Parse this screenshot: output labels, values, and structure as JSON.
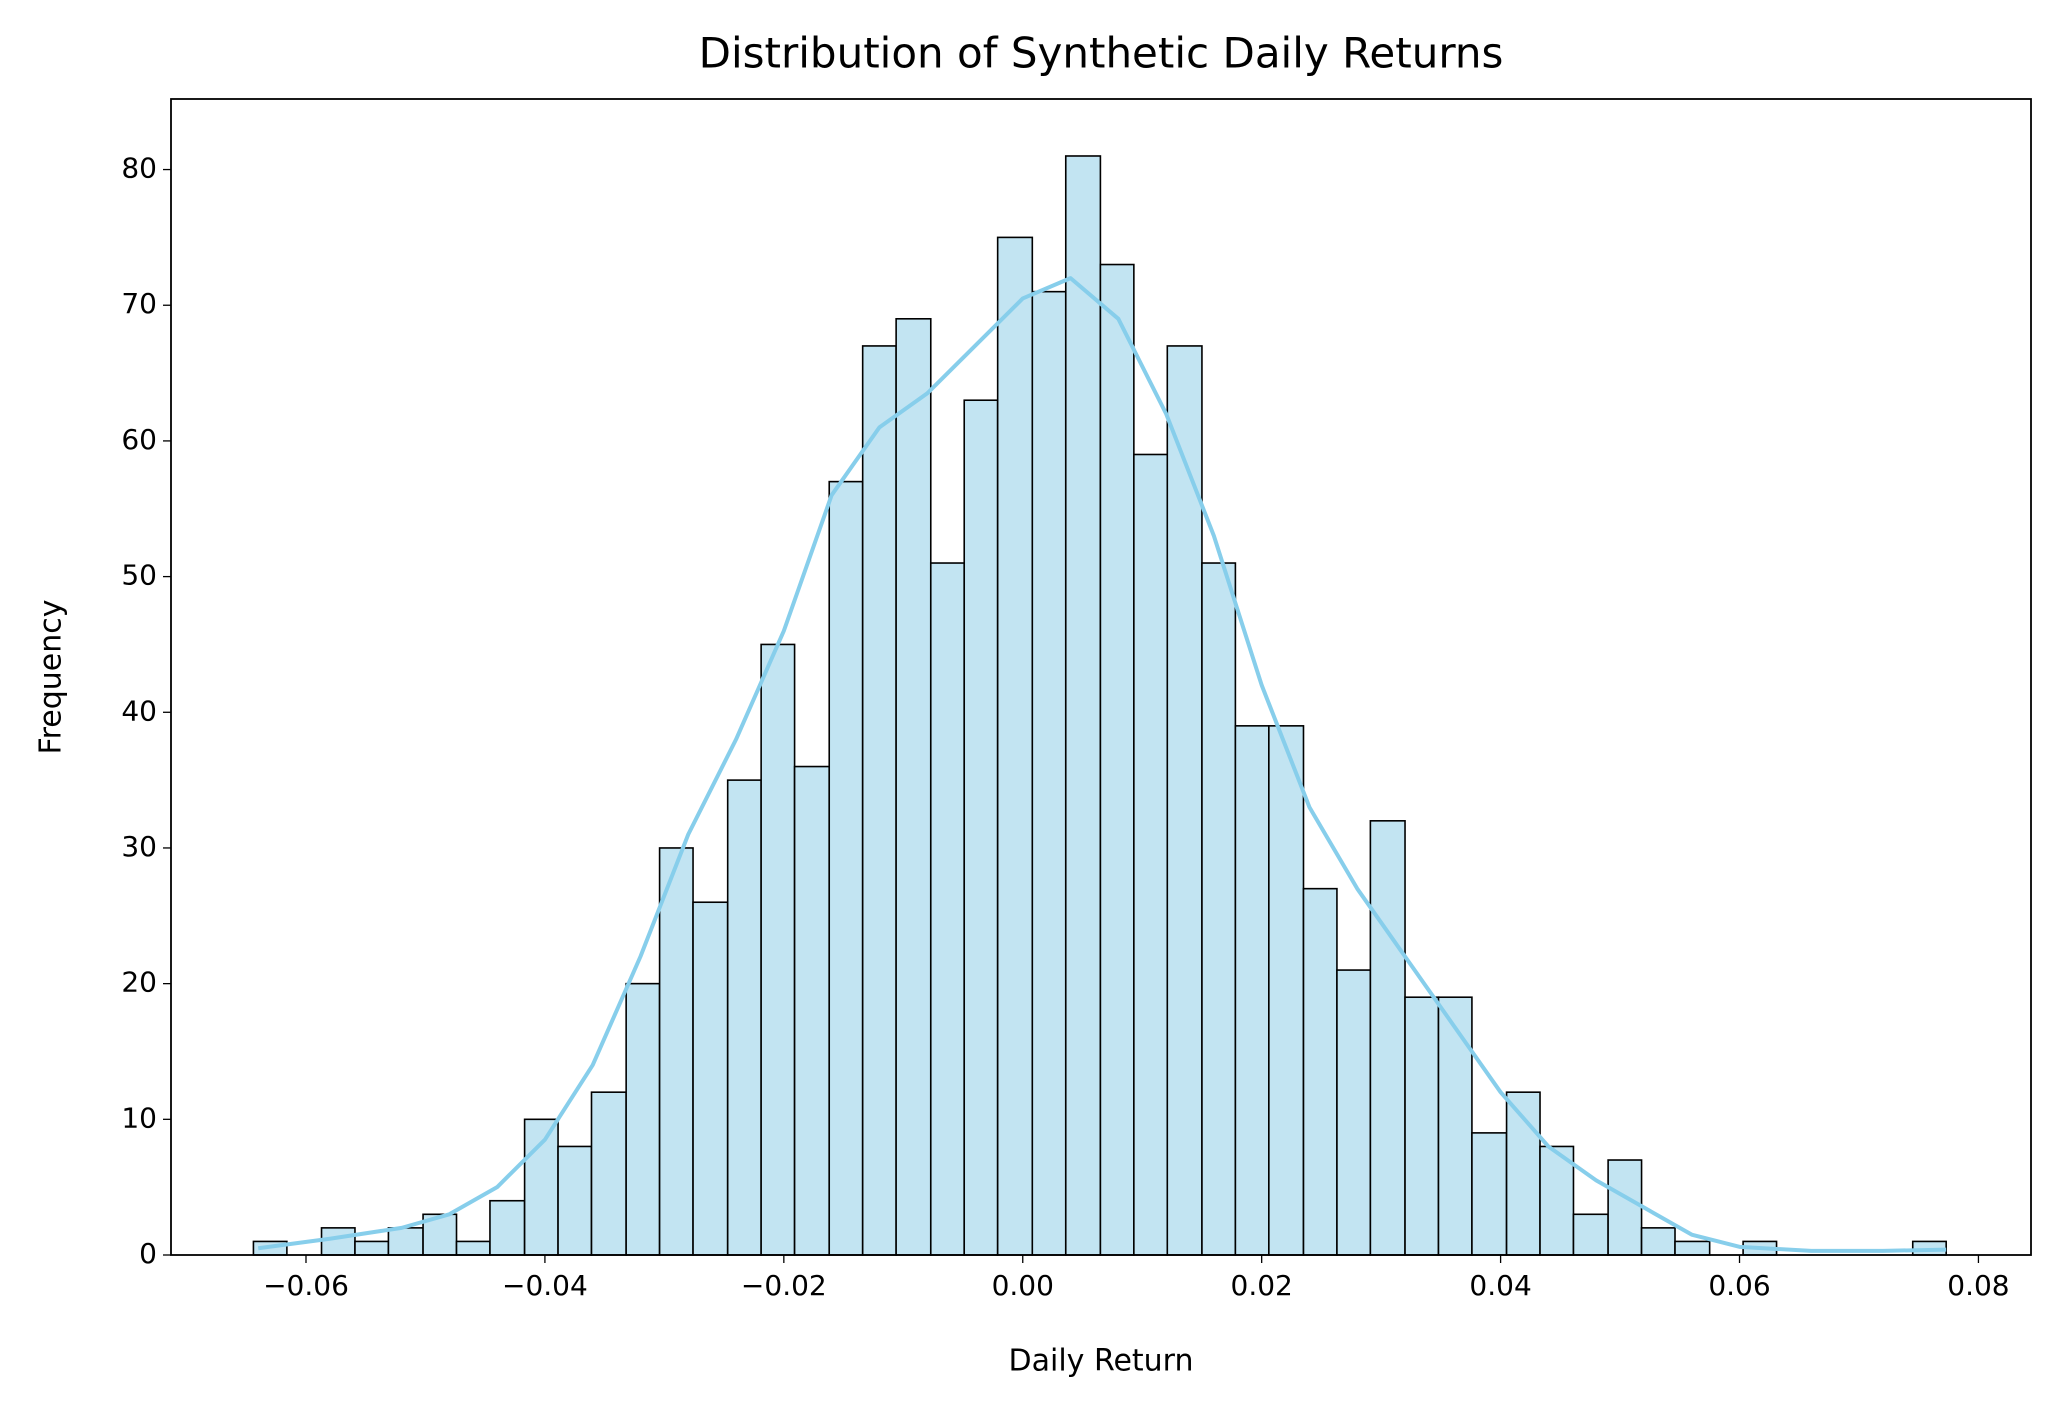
{
  "chart_data": {
    "type": "histogram",
    "title": "Distribution of Synthetic Daily Returns",
    "xlabel": "Daily Return",
    "ylabel": "Frequency",
    "bins": [
      -0.0644,
      -0.0616,
      -0.0587,
      -0.0559,
      -0.0531,
      -0.0502,
      -0.0474,
      -0.0446,
      -0.0417,
      -0.0389,
      -0.0361,
      -0.0332,
      -0.0304,
      -0.0276,
      -0.0247,
      -0.0219,
      -0.0191,
      -0.0162,
      -0.0134,
      -0.0106,
      -0.0077,
      -0.0049,
      -0.0021,
      0.0008,
      0.0036,
      0.0065,
      0.0093,
      0.0121,
      0.015,
      0.0178,
      0.0206,
      0.0235,
      0.0263,
      0.0291,
      0.032,
      0.0348,
      0.0376,
      0.0405,
      0.0433,
      0.0461,
      0.049,
      0.0518,
      0.0546,
      0.0575,
      0.0603,
      0.0631,
      0.066,
      0.0688,
      0.0716,
      0.0745,
      0.0773
    ],
    "values": [
      1,
      0,
      2,
      1,
      2,
      3,
      1,
      4,
      10,
      8,
      12,
      20,
      30,
      26,
      35,
      45,
      36,
      57,
      67,
      69,
      51,
      63,
      75,
      71,
      81,
      73,
      59,
      67,
      51,
      39,
      39,
      27,
      21,
      32,
      19,
      19,
      9,
      12,
      8,
      3,
      7,
      2,
      1,
      0,
      1,
      0,
      0,
      0,
      0,
      1
    ],
    "color": "#c2e4f2",
    "edgecolor": "#000000",
    "kde": {
      "color": "#87ceeb",
      "x": [
        -0.064,
        -0.058,
        -0.052,
        -0.048,
        -0.044,
        -0.04,
        -0.036,
        -0.032,
        -0.028,
        -0.024,
        -0.02,
        -0.016,
        -0.012,
        -0.008,
        -0.004,
        0,
        0.004,
        0.008,
        0.012,
        0.016,
        0.02,
        0.024,
        0.028,
        0.032,
        0.036,
        0.04,
        0.044,
        0.048,
        0.052,
        0.056,
        0.06,
        0.066,
        0.072,
        0.0773
      ],
      "values": [
        0.5,
        1.2,
        2,
        3,
        5,
        8.5,
        14,
        22,
        31,
        38,
        46,
        56,
        61,
        63.5,
        67,
        70.5,
        72,
        69,
        62,
        53,
        42,
        33,
        27,
        22,
        17,
        12,
        8,
        5.5,
        3.5,
        1.5,
        0.6,
        0.3,
        0.3,
        0.4
      ]
    },
    "xlim": [
      -0.0713,
      0.0844
    ],
    "ylim": [
      0,
      85.2
    ],
    "xticks": [
      {
        "value": -0.06,
        "label": "−0.06"
      },
      {
        "value": -0.04,
        "label": "−0.04"
      },
      {
        "value": -0.02,
        "label": "−0.02"
      },
      {
        "value": 0,
        "label": "0.00"
      },
      {
        "value": 0.02,
        "label": "0.02"
      },
      {
        "value": 0.04,
        "label": "0.04"
      },
      {
        "value": 0.06,
        "label": "0.06"
      },
      {
        "value": 0.08,
        "label": "0.08"
      }
    ],
    "yticks": [
      0,
      10,
      20,
      30,
      40,
      50,
      60,
      70,
      80
    ]
  }
}
